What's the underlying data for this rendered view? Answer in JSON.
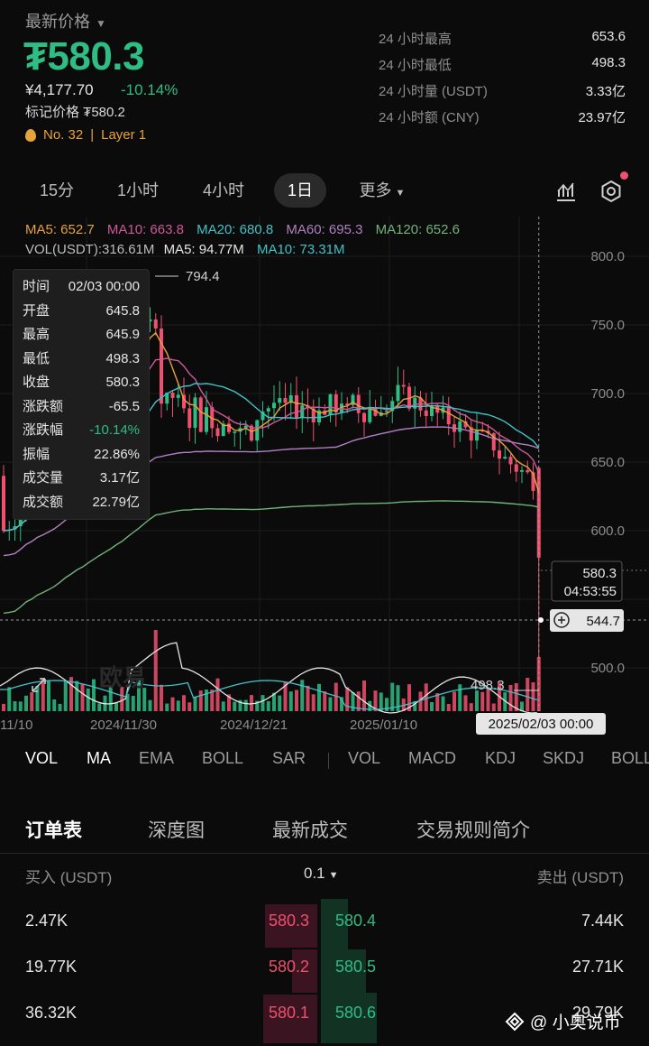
{
  "header": {
    "latest_label": "最新价格",
    "price": "₮580.3",
    "cny_price": "¥4,177.70",
    "change_pct": "-10.14%",
    "mark_price": "标记价格 ₮580.2",
    "rank": "No. 32",
    "rank_sep": "|",
    "category": "Layer 1",
    "stats": [
      {
        "label": "24 小时最高",
        "value": "653.6"
      },
      {
        "label": "24 小时最低",
        "value": "498.3"
      },
      {
        "label": "24 小时量 (USDT)",
        "value": "3.33亿"
      },
      {
        "label": "24 小时额 (CNY)",
        "value": "23.97亿"
      }
    ]
  },
  "periods": [
    "15分",
    "1小时",
    "4小时",
    "1日",
    "更多"
  ],
  "ma_legend": {
    "ma5": "MA5: 652.7",
    "ma10": "MA10: 663.8",
    "ma20": "MA20: 680.8",
    "ma60": "MA60: 695.3",
    "ma120": "MA120: 652.6"
  },
  "vol_legend": {
    "vol": "VOL(USDT):316.61M",
    "ma5": "MA5: 94.77M",
    "ma10": "MA10: 73.31M"
  },
  "axis": {
    "y_ticks": [
      "800.0",
      "750.0",
      "700.0",
      "650.0",
      "600.0",
      "500.0"
    ],
    "x_ticks": [
      "11/10",
      "2024/11/30",
      "2024/12/21",
      "2025/01/10"
    ],
    "high_mark": "794.4",
    "low_mark": "498.3",
    "current_price": "580.3",
    "countdown": "04:53:55",
    "crosshair_price": "544.7",
    "crosshair_date": "2025/02/03 00:00",
    "brand_watermark": "欧易"
  },
  "tooltip": [
    {
      "k": "时间",
      "v": "02/03 00:00"
    },
    {
      "k": "开盘",
      "v": "645.8"
    },
    {
      "k": "最高",
      "v": "645.9"
    },
    {
      "k": "最低",
      "v": "498.3"
    },
    {
      "k": "收盘",
      "v": "580.3"
    },
    {
      "k": "涨跌额",
      "v": "-65.5"
    },
    {
      "k": "涨跌幅",
      "v": "-10.14%"
    },
    {
      "k": "振幅",
      "v": "22.86%"
    },
    {
      "k": "成交量",
      "v": "3.17亿"
    },
    {
      "k": "成交额",
      "v": "22.79亿"
    }
  ],
  "indicators": [
    "VOL",
    "MA",
    "EMA",
    "BOLL",
    "SAR",
    "VOL",
    "MACD",
    "KDJ",
    "SKDJ",
    "BOLL"
  ],
  "book_tabs": [
    "订单表",
    "深度图",
    "最新成交",
    "交易规则简介"
  ],
  "book_head": {
    "bid": "买入 (USDT)",
    "step": "0.1",
    "ask": "卖出 (USDT)"
  },
  "book_rows": [
    {
      "bid_qty": "2.47K",
      "bid_price": "580.3",
      "ask_price": "580.4",
      "ask_qty": "7.44K"
    },
    {
      "bid_qty": "19.77K",
      "bid_price": "580.2",
      "ask_price": "580.5",
      "ask_qty": "27.71K"
    },
    {
      "bid_qty": "36.32K",
      "bid_price": "580.1",
      "ask_price": "580.6",
      "ask_qty": "29.79K"
    }
  ],
  "watermark": "@ 小奥说币",
  "colors": {
    "up": "#2ebd85",
    "down": "#f0506e",
    "ma5": "#e6a23c",
    "ma10": "#d0589a",
    "ma20": "#3fc3c8",
    "ma60": "#b27fc2",
    "ma120": "#72b37a"
  }
}
